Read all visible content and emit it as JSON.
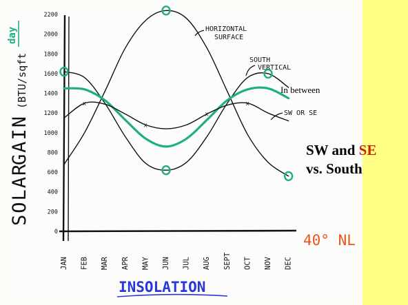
{
  "chart_data": {
    "type": "line",
    "title": "INSOLATION",
    "ylabel": "SOLAR GAIN (BTU/sqft·day)",
    "y_unit": "day",
    "ylim": [
      0,
      2200
    ],
    "y_ticks": [
      0,
      200,
      400,
      600,
      800,
      1000,
      1200,
      1400,
      1600,
      1800,
      2000,
      2200
    ],
    "categories": [
      "JAN",
      "FEB",
      "MAR",
      "APR",
      "MAY",
      "JUN",
      "JUL",
      "AUG",
      "SEPT",
      "OCT",
      "NOV",
      "DEC"
    ],
    "grid": false,
    "series": [
      {
        "name": "HORIZONTAL SURFACE",
        "color": "#111111",
        "values": [
          680,
          1000,
          1420,
          1860,
          2140,
          2240,
          2160,
          1860,
          1420,
          980,
          700,
          560
        ]
      },
      {
        "name": "SOUTH VERTICAL",
        "color": "#111111",
        "values": [
          1620,
          1560,
          1300,
          960,
          690,
          620,
          700,
          960,
          1300,
          1560,
          1600,
          1460
        ]
      },
      {
        "name": "In between",
        "color": "#1fae84",
        "values": [
          1450,
          1440,
          1330,
          1130,
          940,
          860,
          940,
          1130,
          1330,
          1440,
          1450,
          1350
        ]
      },
      {
        "name": "SW OR SE",
        "color": "#111111",
        "values": [
          1150,
          1300,
          1290,
          1190,
          1080,
          1040,
          1080,
          1190,
          1280,
          1300,
          1200,
          1120
        ]
      }
    ],
    "highlight_markers": [
      {
        "series": "HORIZONTAL SURFACE",
        "x": "JUN"
      },
      {
        "series": "HORIZONTAL SURFACE",
        "x": "DEC"
      },
      {
        "series": "SOUTH VERTICAL",
        "x": "JAN"
      },
      {
        "series": "SOUTH VERTICAL",
        "x": "JUN"
      },
      {
        "series": "SOUTH VERTICAL",
        "x": "NOV"
      }
    ],
    "x_markers": [
      {
        "series": "SW OR SE",
        "x": "FEB"
      },
      {
        "series": "SW OR SE",
        "x": "MAY"
      },
      {
        "series": "SW OR SE",
        "x": "AUG"
      },
      {
        "series": "SW OR SE",
        "x": "OCT"
      }
    ],
    "annotations": {
      "horizontal_line1": "HORIZONTAL",
      "horizontal_line2": "SURFACE",
      "south_line1": "SOUTH",
      "south_line2": "VERTICAL",
      "in_between": "In between",
      "sw_se": "SW OR SE",
      "latitude": "40° NL"
    },
    "ylabel_word1": "SOLAR",
    "ylabel_word2": "GAIN",
    "ylabel_units": "(BTU/sqft",
    "colors": {
      "ink": "#111111",
      "green": "#1fae84",
      "orange": "#e8551a",
      "title_blue": "#2a36d8"
    }
  },
  "caption": {
    "line1_part1": "SW and ",
    "line1_part2": "SE",
    "line2": "vs. South",
    "color": "#000000",
    "accent": "#cc2200"
  },
  "side_panel": {
    "color": "#ffff86"
  }
}
